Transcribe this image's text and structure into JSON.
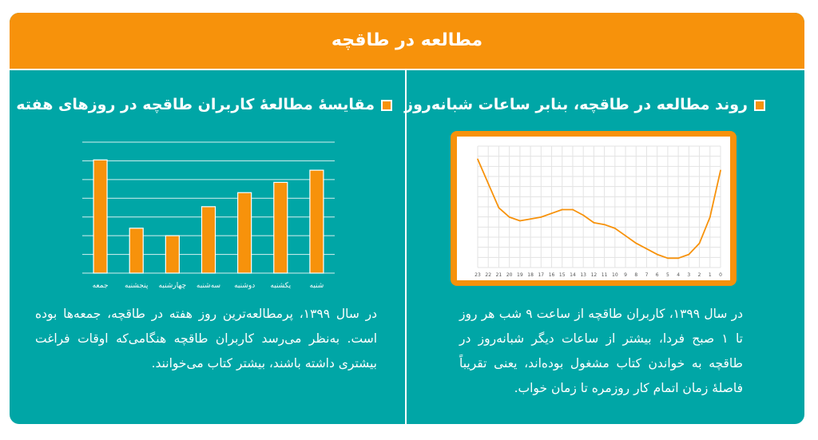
{
  "banner": {
    "title": "مطالعه در طاقچه"
  },
  "right_panel": {
    "heading": "روند مطالعه در طاقچه، بنابر ساعات شبانه‌روز",
    "paragraph": "در سال ۱۳۹۹، کاربران طاقچه از ساعت ۹ شب هر روز تا ۱ صبح فردا، بیشتر از ساعات دیگر شبانه‌روز در طاقچه به خواندن کتاب مشغول بوده‌اند، یعنی تقریباً فاصلهٔ زمان اتمام کار روزمره تا زمان خواب."
  },
  "left_panel": {
    "heading": "مقایسهٔ مطالعهٔ کاربران طاقچه در روزهای هفته",
    "paragraph": "در سال ۱۳۹۹، پرمطالعه‌ترین روز هفته در طاقچه، جمعه‌ها بوده است. به‌نظر می‌رسد کاربران طاقچه هنگامی‌که اوقات فراغت بیشتری داشته باشند، بیشتر کتاب می‌خوانند."
  },
  "colors": {
    "accent": "#f7920b",
    "background": "#00a6a6",
    "text": "#ffffff"
  },
  "chart_data": [
    {
      "type": "line",
      "title": "",
      "x": [
        "23",
        "22",
        "21",
        "20",
        "19",
        "18",
        "17",
        "16",
        "15",
        "14",
        "13",
        "12",
        "11",
        "10",
        "9",
        "8",
        "7",
        "6",
        "5",
        "4",
        "3",
        "2",
        "1",
        "0"
      ],
      "series": [
        {
          "values": [
            88,
            75,
            62,
            57,
            55,
            56,
            57,
            59,
            61,
            61,
            58,
            54,
            53,
            51,
            47,
            43,
            40,
            37,
            35,
            35,
            37,
            43,
            57,
            82
          ]
        }
      ],
      "ylim": [
        30,
        95
      ],
      "grid": true,
      "legend": "none"
    },
    {
      "type": "bar",
      "title": "",
      "categories": [
        "شنبه",
        "یکشنبه",
        "دوشنبه",
        "سه‌شنبه",
        "چهارشنبه",
        "پنجشنبه",
        "جمعه"
      ],
      "values": [
        110,
        97,
        86,
        71,
        40,
        48,
        121
      ],
      "ylim": [
        0,
        140
      ],
      "grid": true,
      "legend": "none"
    }
  ]
}
